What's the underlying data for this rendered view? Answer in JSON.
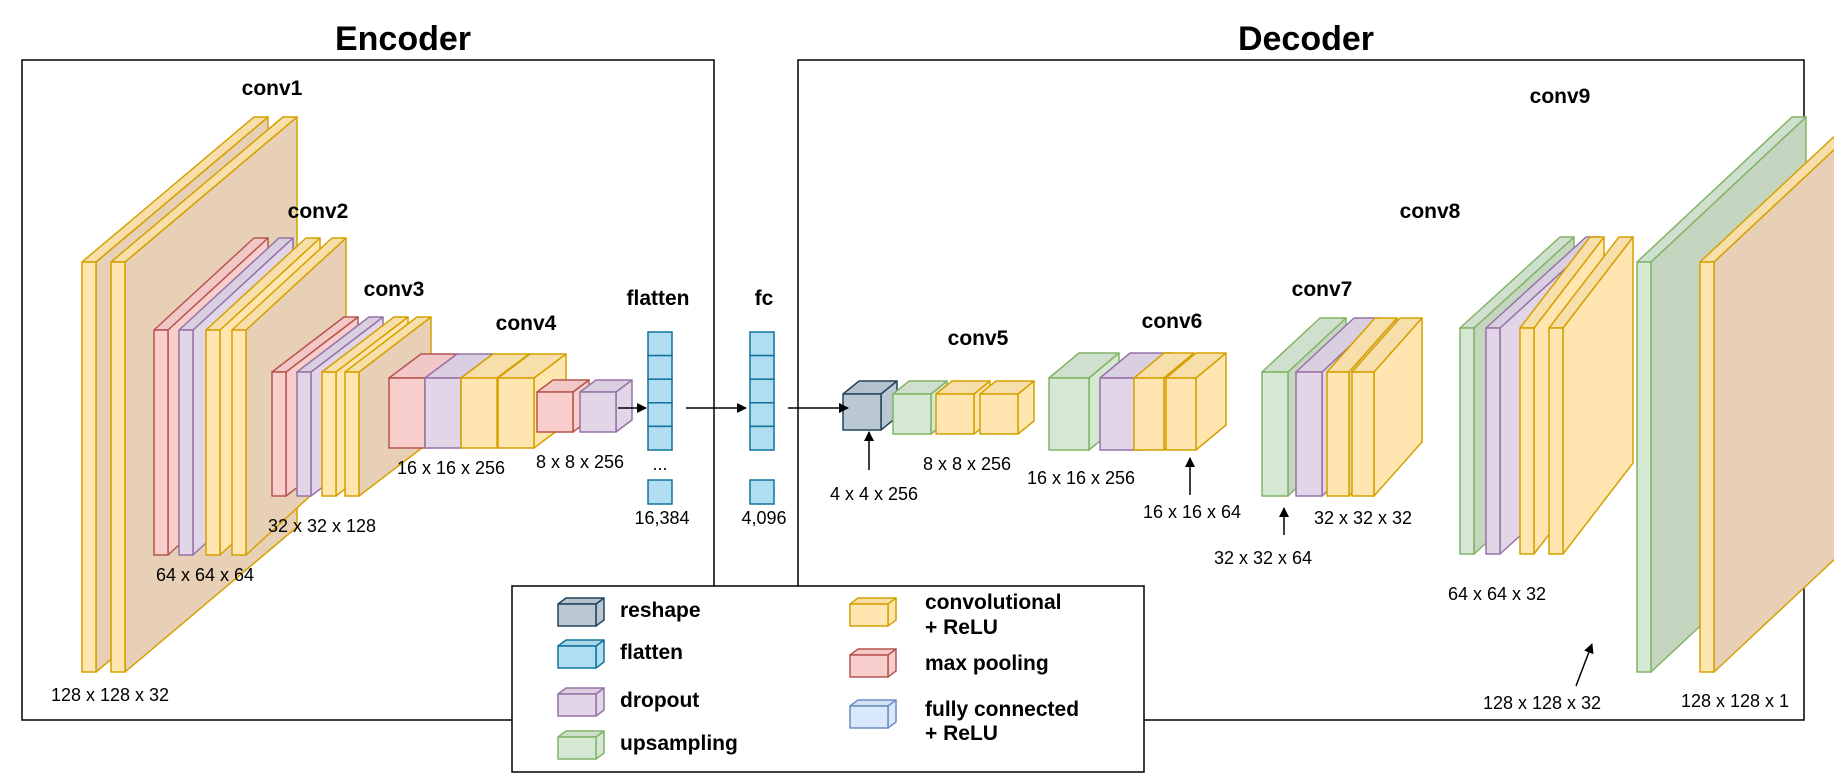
{
  "titles": {
    "encoder": "Encoder",
    "decoder": "Decoder"
  },
  "layer_names": {
    "conv1": "conv1",
    "conv2": "conv2",
    "conv3": "conv3",
    "conv4": "conv4",
    "flatten": "flatten",
    "fc": "fc",
    "conv5": "conv5",
    "conv6": "conv6",
    "conv7": "conv7",
    "conv8": "conv8",
    "conv9": "conv9"
  },
  "dims": {
    "enc_conv1": "128 x 128 x 32",
    "enc_conv2": "64 x 64 x 64",
    "enc_conv3": "32 x 32 x 128",
    "enc_conv4": "16 x 16 x 256",
    "enc_pool4": "8 x 8 x 256",
    "flatten": "16,384",
    "fc": "4,096",
    "reshape": "4 x 4 x 256",
    "conv5": "8 x 8 x 256",
    "up5": "16 x 16 x 256",
    "conv6": "16 x 16 x 64",
    "up6": "32 x 32 x 64",
    "conv7": "32 x 32 x 32",
    "conv8": "64 x 64 x 32",
    "up8": "128 x 128 x 32",
    "output": "128 x 128 x 1"
  },
  "vector_ellipsis": "...",
  "legend": {
    "reshape": "reshape",
    "flatten": "flatten",
    "dropout": "dropout",
    "upsampling": "upsampling",
    "conv_line1": "convolutional",
    "conv_line2": "+ ReLU",
    "maxpool": "max pooling",
    "fc_line1": "fully connected",
    "fc_line2": "+ ReLU"
  },
  "colors": {
    "conv": "#ffe6b0",
    "conv_edge": "#d6a000",
    "pool": "#f8cecc",
    "pool_edge": "#b85450",
    "dropout": "#e1d5e7",
    "dropout_edge": "#9673a6",
    "upsampling": "#d5e8d4",
    "upsampling_edge": "#82b366",
    "flatten": "#b1ddf0",
    "flatten_edge": "#10739e",
    "reshape": "#bac8d3",
    "reshape_edge": "#23445d",
    "fc": "#dae8fc",
    "fc_edge": "#6c8ebf"
  }
}
